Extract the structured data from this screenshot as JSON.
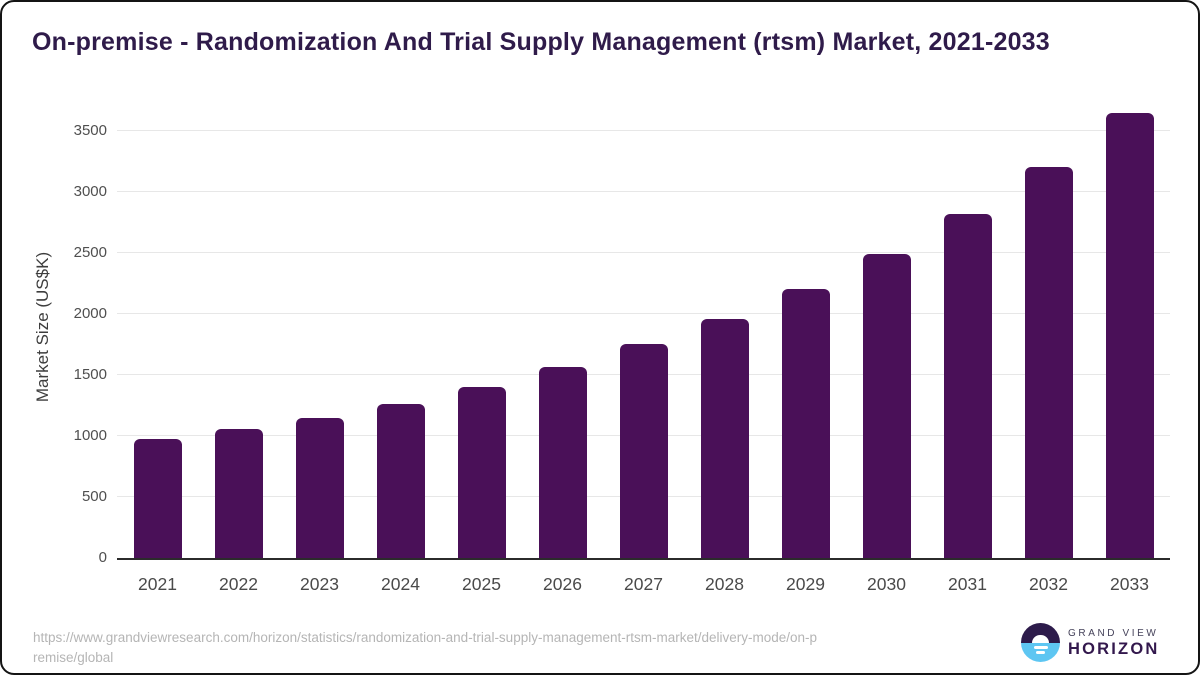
{
  "header": {
    "title": "On-premise - Randomization And Trial Supply Management (rtsm) Market, 2021-2033"
  },
  "chart_data": {
    "type": "bar",
    "title": "On-premise - Randomization And Trial Supply Management (rtsm) Market, 2021-2033",
    "categories": [
      "2021",
      "2022",
      "2023",
      "2024",
      "2025",
      "2026",
      "2027",
      "2028",
      "2029",
      "2030",
      "2031",
      "2032",
      "2033"
    ],
    "values": [
      975,
      1055,
      1150,
      1265,
      1400,
      1565,
      1750,
      1960,
      2205,
      2490,
      2815,
      3200,
      3645
    ],
    "xlabel": "",
    "ylabel": "Market Size (US$K)",
    "ylim": [
      0,
      3736
    ],
    "yticks": [
      0,
      500,
      1000,
      1500,
      2000,
      2500,
      3000,
      3500
    ],
    "grid": true,
    "legend": false,
    "bar_color": "#4a1058"
  },
  "footer": {
    "source_url_line1": "https://www.grandviewresearch.com/horizon/statistics/randomization-and-trial-supply-management-rtsm-market/delivery-mode/on-p",
    "source_url_line2": "remise/global",
    "brand_top": "GRAND VIEW",
    "brand_bottom": "HORIZON"
  },
  "colors": {
    "bar": "#4a1058",
    "title_text": "#2f1b4a",
    "axis_line": "#2b2b2b",
    "gridline": "#e7e7e7",
    "tick_label": "#4f4f4f",
    "url_text": "#b5b5b5",
    "logo_top": "#2d1b4b",
    "logo_bottom": "#5ec6f2",
    "brand_text": "#33184d"
  }
}
